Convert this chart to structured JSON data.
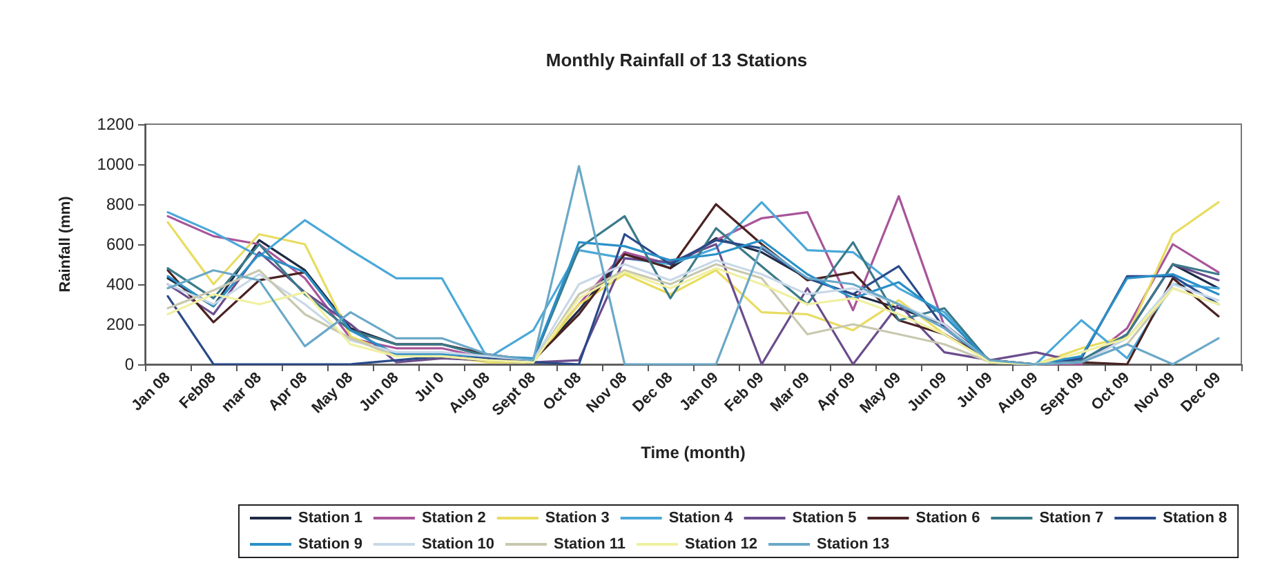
{
  "chart_data": {
    "type": "line",
    "title": "Monthly Rainfall of 13 Stations",
    "xlabel": "Time (month)",
    "ylabel": "Rainfall (mm)",
    "categories": [
      "Jan 08",
      "Feb08",
      "mar 08",
      "Apr 08",
      "May 08",
      "Jun 08",
      "Jul 0",
      "Aug 08",
      "Sept 08",
      "Oct 08",
      "Nov 08",
      "Dec 08",
      "Jan 09",
      "Feb 09",
      "Mar 09",
      "Apr 09",
      "May 09",
      "Jun 09",
      "Jul 09",
      "Aug 09",
      "Sept 09",
      "Oct 09",
      "Nov 09",
      "Dec 09"
    ],
    "ylim": [
      0,
      1200
    ],
    "yticks": [
      0,
      200,
      400,
      600,
      800,
      1000,
      1200
    ],
    "grid": false,
    "legend": "bottom",
    "marker": "none",
    "line_style": "solid",
    "series": [
      {
        "name": "Station 1",
        "color": "#1f2a44",
        "values": [
          430,
          290,
          620,
          470,
          180,
          100,
          100,
          40,
          20,
          270,
          560,
          480,
          630,
          560,
          430,
          350,
          280,
          200,
          20,
          0,
          10,
          150,
          500,
          380
        ]
      },
      {
        "name": "Station 2",
        "color": "#a8559a",
        "values": [
          740,
          640,
          600,
          430,
          130,
          80,
          80,
          30,
          20,
          300,
          560,
          500,
          620,
          730,
          760,
          270,
          840,
          190,
          10,
          0,
          0,
          180,
          600,
          460
        ]
      },
      {
        "name": "Station 3",
        "color": "#e8dc60",
        "values": [
          710,
          400,
          650,
          600,
          140,
          40,
          40,
          10,
          10,
          300,
          450,
          350,
          470,
          260,
          250,
          170,
          320,
          150,
          10,
          0,
          80,
          140,
          650,
          810
        ]
      },
      {
        "name": "Station 4",
        "color": "#4aa8d8",
        "values": [
          760,
          660,
          540,
          720,
          570,
          430,
          430,
          30,
          170,
          570,
          530,
          500,
          580,
          810,
          570,
          560,
          380,
          260,
          10,
          0,
          220,
          30,
          400,
          380
        ]
      },
      {
        "name": "Station 5",
        "color": "#6a4c8c",
        "values": [
          400,
          250,
          560,
          360,
          200,
          10,
          30,
          20,
          10,
          20,
          530,
          510,
          600,
          0,
          380,
          0,
          300,
          60,
          20,
          60,
          10,
          150,
          500,
          420
        ]
      },
      {
        "name": "Station 6",
        "color": "#4a2222",
        "values": [
          470,
          210,
          420,
          460,
          170,
          100,
          100,
          50,
          20,
          250,
          550,
          480,
          800,
          600,
          420,
          460,
          220,
          150,
          20,
          0,
          10,
          0,
          430,
          240
        ]
      },
      {
        "name": "Station 7",
        "color": "#3a7a8a",
        "values": [
          480,
          330,
          600,
          350,
          170,
          100,
          100,
          40,
          20,
          580,
          740,
          330,
          680,
          490,
          300,
          610,
          220,
          280,
          10,
          0,
          20,
          150,
          500,
          450
        ]
      },
      {
        "name": "Station 8",
        "color": "#2a4a8a",
        "values": [
          340,
          0,
          0,
          0,
          0,
          20,
          40,
          30,
          10,
          0,
          650,
          500,
          620,
          580,
          430,
          350,
          490,
          180,
          10,
          0,
          30,
          440,
          440,
          300
        ]
      },
      {
        "name": "Station 9",
        "color": "#2a90c8",
        "values": [
          440,
          290,
          550,
          460,
          170,
          50,
          50,
          40,
          30,
          610,
          590,
          520,
          550,
          620,
          450,
          330,
          410,
          240,
          10,
          0,
          40,
          430,
          450,
          350
        ]
      },
      {
        "name": "Station 10",
        "color": "#c8d8e8",
        "values": [
          400,
          300,
          450,
          300,
          120,
          60,
          60,
          40,
          20,
          400,
          500,
          420,
          520,
          450,
          350,
          380,
          300,
          200,
          10,
          0,
          10,
          130,
          400,
          320
        ]
      },
      {
        "name": "Station 11",
        "color": "#c8c8b0",
        "values": [
          280,
          370,
          470,
          250,
          130,
          40,
          40,
          20,
          10,
          350,
          470,
          400,
          500,
          430,
          150,
          200,
          150,
          100,
          10,
          0,
          10,
          100,
          380,
          300
        ]
      },
      {
        "name": "Station 12",
        "color": "#f0f0a0",
        "values": [
          250,
          350,
          300,
          360,
          100,
          40,
          40,
          20,
          10,
          330,
          460,
          380,
          480,
          400,
          300,
          330,
          250,
          150,
          10,
          0,
          60,
          130,
          380,
          300
        ]
      },
      {
        "name": "Station 13",
        "color": "#6aa8c8",
        "values": [
          380,
          470,
          420,
          90,
          260,
          130,
          130,
          50,
          20,
          990,
          0,
          0,
          0,
          590,
          430,
          400,
          300,
          180,
          20,
          0,
          10,
          100,
          0,
          130
        ]
      }
    ]
  }
}
